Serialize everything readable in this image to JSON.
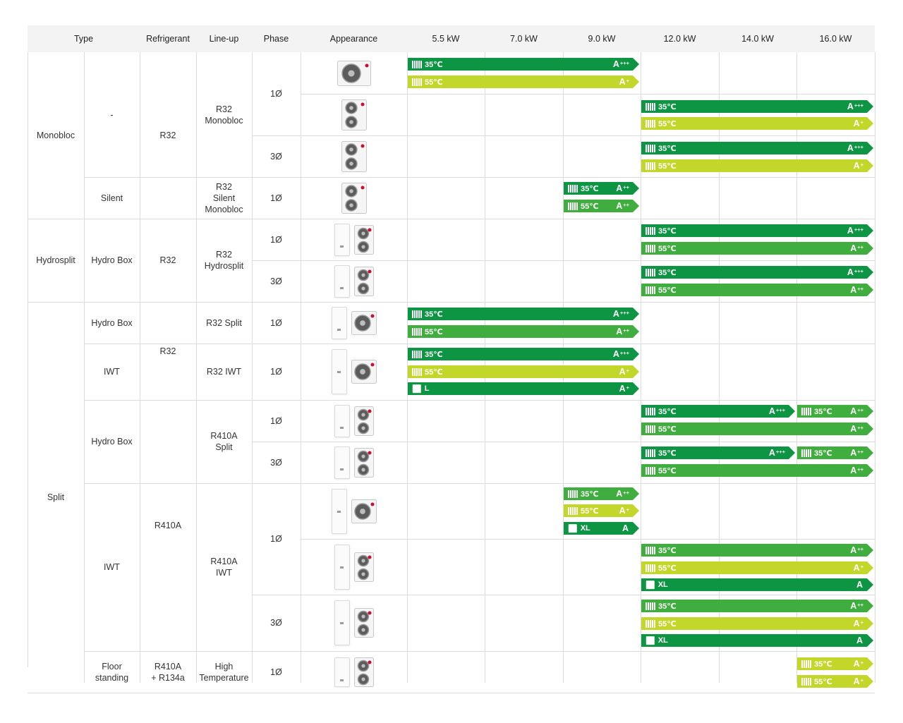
{
  "colors": {
    "dark_green": "#0e9543",
    "mid_green": "#3fae3f",
    "yellow_green": "#c3d62a",
    "header_bg": "#f3f3f3",
    "grid": "#dcdcdc"
  },
  "headers": [
    "Type",
    "Refrigerant",
    "Line-up",
    "Phase",
    "Appearance",
    "5.5 kW",
    "7.0 kW",
    "9.0 kW",
    "12.0 kW",
    "14.0 kW",
    "16.0 kW"
  ],
  "type_cells": [
    {
      "text": "Monobloc"
    },
    {
      "text": "Hydrosplit"
    },
    {
      "text": "Split"
    }
  ],
  "sub_cells": [
    {
      "text": "-"
    },
    {
      "text": "Silent"
    },
    {
      "text": "Hydro Box"
    },
    {
      "text": "Hydro Box"
    },
    {
      "text": "IWT"
    },
    {
      "text": "Hydro Box"
    },
    {
      "text": "IWT"
    },
    {
      "text": "Floor\nstanding"
    }
  ],
  "refrigerant_cells": [
    {
      "text": "R32"
    },
    {
      "text": "R32"
    },
    {
      "text": "R32"
    },
    {
      "text": "R410A"
    },
    {
      "text": "R410A\n+ R134a"
    }
  ],
  "lineup_cells": [
    {
      "text": "R32\nMonobloc"
    },
    {
      "text": "R32\nSilent\nMonobloc"
    },
    {
      "text": "R32\nHydrosplit"
    },
    {
      "text": "R32 Split"
    },
    {
      "text": "R32 IWT"
    },
    {
      "text": "R410A\nSplit"
    },
    {
      "text": "R410A\nIWT"
    },
    {
      "text": "High\nTemperature"
    }
  ],
  "phase_cells": [
    {
      "text": "1Ø"
    },
    {
      "text": "3Ø"
    },
    {
      "text": "1Ø"
    },
    {
      "text": "1Ø"
    },
    {
      "text": "3Ø"
    },
    {
      "text": "1Ø"
    },
    {
      "text": "1Ø"
    },
    {
      "text": "1Ø"
    },
    {
      "text": "3Ø"
    },
    {
      "text": "1Ø"
    },
    {
      "text": "3Ø"
    },
    {
      "text": "1Ø"
    }
  ],
  "appearance_icons": [
    "monobloc-unit",
    "monobloc-unit",
    "monobloc-unit",
    "monobloc-unit",
    "hydro-box-with-outdoor-unit",
    "hydro-box-with-outdoor-unit",
    "hydro-box-with-outdoor-unit",
    "iwt-with-outdoor-unit",
    "hydro-box-with-outdoor-unit",
    "hydro-box-with-outdoor-unit",
    "iwt-with-outdoor-unit",
    "iwt-with-outdoor-unit",
    "iwt-with-outdoor-unit",
    "floor-standing-with-outdoor-unit"
  ],
  "bars": [
    {
      "label": "35℃",
      "icon": "radiator",
      "rating": "A",
      "sup": "+++",
      "color": "dark"
    },
    {
      "label": "55℃",
      "icon": "radiator",
      "rating": "A",
      "sup": "+",
      "color": "yellow"
    },
    {
      "label": "35℃",
      "icon": "radiator",
      "rating": "A",
      "sup": "+++",
      "color": "dark"
    },
    {
      "label": "55℃",
      "icon": "radiator",
      "rating": "A",
      "sup": "+",
      "color": "yellow"
    },
    {
      "label": "35℃",
      "icon": "radiator",
      "rating": "A",
      "sup": "+++",
      "color": "dark"
    },
    {
      "label": "55℃",
      "icon": "radiator",
      "rating": "A",
      "sup": "+",
      "color": "yellow"
    },
    {
      "label": "35℃",
      "icon": "radiator",
      "rating": "A",
      "sup": "++",
      "color": "dark"
    },
    {
      "label": "55℃",
      "icon": "radiator",
      "rating": "A",
      "sup": "++",
      "color": "mid"
    },
    {
      "label": "35℃",
      "icon": "radiator",
      "rating": "A",
      "sup": "+++",
      "color": "dark"
    },
    {
      "label": "55℃",
      "icon": "radiator",
      "rating": "A",
      "sup": "++",
      "color": "mid"
    },
    {
      "label": "35℃",
      "icon": "radiator",
      "rating": "A",
      "sup": "+++",
      "color": "dark"
    },
    {
      "label": "55℃",
      "icon": "radiator",
      "rating": "A",
      "sup": "++",
      "color": "mid"
    },
    {
      "label": "35℃",
      "icon": "radiator",
      "rating": "A",
      "sup": "+++",
      "color": "dark"
    },
    {
      "label": "55℃",
      "icon": "radiator",
      "rating": "A",
      "sup": "++",
      "color": "mid"
    },
    {
      "label": "35℃",
      "icon": "radiator",
      "rating": "A",
      "sup": "+++",
      "color": "dark"
    },
    {
      "label": "55℃",
      "icon": "radiator",
      "rating": "A",
      "sup": "+",
      "color": "yellow"
    },
    {
      "label": "L",
      "icon": "tap",
      "rating": "A",
      "sup": "+",
      "color": "dark"
    },
    {
      "label": "35℃",
      "icon": "radiator",
      "rating": "A",
      "sup": "+++",
      "color": "dark"
    },
    {
      "label": "35℃",
      "icon": "radiator",
      "rating": "A",
      "sup": "++",
      "color": "mid"
    },
    {
      "label": "55℃",
      "icon": "radiator",
      "rating": "A",
      "sup": "++",
      "color": "mid"
    },
    {
      "label": "35℃",
      "icon": "radiator",
      "rating": "A",
      "sup": "+++",
      "color": "dark"
    },
    {
      "label": "35℃",
      "icon": "radiator",
      "rating": "A",
      "sup": "++",
      "color": "mid"
    },
    {
      "label": "55℃",
      "icon": "radiator",
      "rating": "A",
      "sup": "++",
      "color": "mid"
    },
    {
      "label": "35℃",
      "icon": "radiator",
      "rating": "A",
      "sup": "++",
      "color": "mid"
    },
    {
      "label": "55℃",
      "icon": "radiator",
      "rating": "A",
      "sup": "+",
      "color": "yellow"
    },
    {
      "label": "XL",
      "icon": "tap",
      "rating": "A",
      "sup": "",
      "color": "dark"
    },
    {
      "label": "35℃",
      "icon": "radiator",
      "rating": "A",
      "sup": "++",
      "color": "mid"
    },
    {
      "label": "55℃",
      "icon": "radiator",
      "rating": "A",
      "sup": "+",
      "color": "yellow"
    },
    {
      "label": "XL",
      "icon": "tap",
      "rating": "A",
      "sup": "",
      "color": "dark"
    },
    {
      "label": "35℃",
      "icon": "radiator",
      "rating": "A",
      "sup": "++",
      "color": "mid"
    },
    {
      "label": "55℃",
      "icon": "radiator",
      "rating": "A",
      "sup": "+",
      "color": "yellow"
    },
    {
      "label": "XL",
      "icon": "tap",
      "rating": "A",
      "sup": "",
      "color": "dark"
    },
    {
      "label": "35℃",
      "icon": "radiator",
      "rating": "A",
      "sup": "+",
      "color": "yellow"
    },
    {
      "label": "55℃",
      "icon": "radiator",
      "rating": "A",
      "sup": "+",
      "color": "yellow"
    }
  ]
}
